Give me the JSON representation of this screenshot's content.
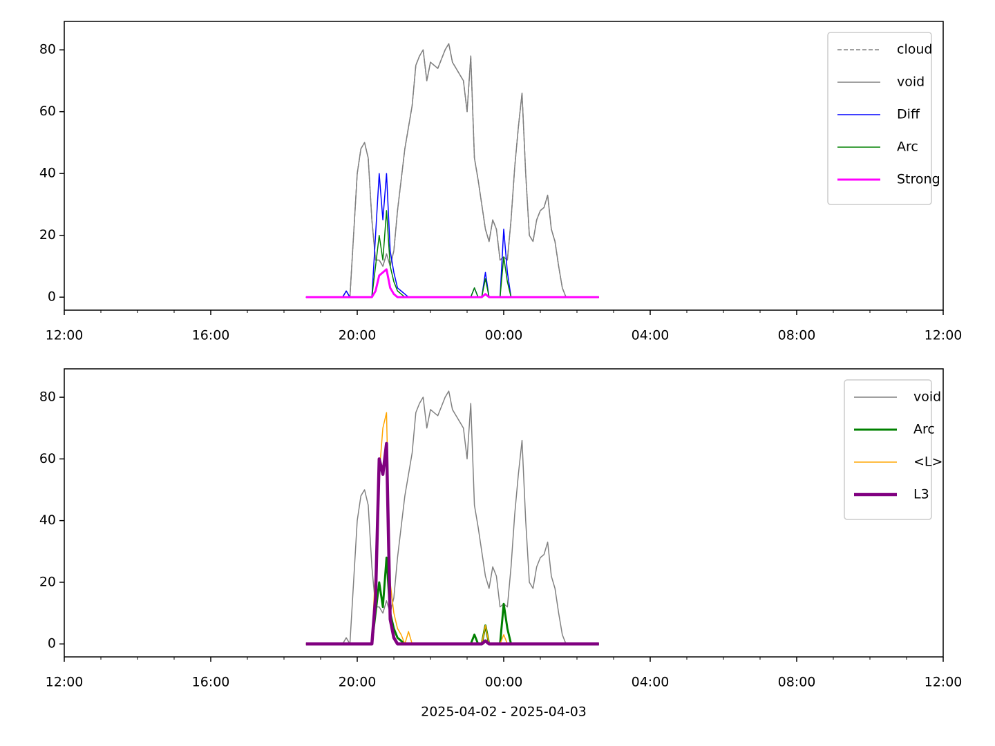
{
  "chart_data": [
    {
      "type": "line",
      "x": [
        6.6,
        6.7,
        6.8,
        6.9,
        7.0,
        7.1,
        7.2,
        7.3,
        7.4,
        7.5,
        7.6,
        7.7,
        7.8,
        7.9,
        8.0,
        8.1,
        8.2,
        8.3,
        8.4,
        8.5,
        8.6,
        8.7,
        8.8,
        8.9,
        9.0,
        9.1,
        9.2,
        9.3,
        9.4,
        9.5,
        9.6,
        9.7,
        9.8,
        9.9,
        10.0,
        10.1,
        10.2,
        10.3,
        10.4,
        10.5,
        10.6,
        10.7,
        10.8,
        10.9,
        11.0,
        11.1,
        11.2,
        11.3,
        11.4,
        11.5,
        11.6,
        11.7,
        11.8,
        11.9,
        12.0,
        12.1,
        12.2,
        12.3,
        12.4,
        12.5,
        12.6,
        12.7,
        12.8,
        12.9,
        13.0,
        13.1,
        13.2,
        13.3,
        13.4,
        13.5,
        13.6,
        13.7,
        13.8,
        13.9,
        14.0,
        14.1,
        14.2,
        14.3,
        14.4,
        14.5,
        14.6
      ],
      "xlim": [
        0,
        24
      ],
      "xticks": [
        {
          "value": 0,
          "label": "12:00"
        },
        {
          "value": 4,
          "label": "16:00"
        },
        {
          "value": 8,
          "label": "20:00"
        },
        {
          "value": 12,
          "label": "00:00"
        },
        {
          "value": 16,
          "label": "04:00"
        },
        {
          "value": 20,
          "label": "08:00"
        },
        {
          "value": 24,
          "label": "12:00"
        }
      ],
      "ylim": [
        -4.2,
        89.2
      ],
      "yticks": [
        0,
        20,
        40,
        60,
        80
      ],
      "legend": "upper right",
      "series": [
        {
          "name": "cloud",
          "color": "#808080",
          "width": 1.5,
          "dash": true,
          "values": [
            0,
            0,
            0,
            0,
            0,
            0,
            0,
            0,
            0,
            0,
            0,
            2,
            0,
            20,
            40,
            48,
            50,
            45,
            25,
            12,
            12,
            10,
            14,
            10,
            15,
            28,
            38,
            48,
            55,
            62,
            75,
            78,
            80,
            70,
            76,
            75,
            74,
            77,
            80,
            82,
            76,
            74,
            72,
            70,
            60,
            78,
            45,
            38,
            30,
            22,
            18,
            25,
            22,
            12,
            13,
            12,
            25,
            42,
            55,
            66,
            40,
            20,
            18,
            25,
            28,
            29,
            33,
            22,
            18,
            10,
            3,
            0,
            0,
            0,
            0,
            0,
            0,
            0,
            0,
            0,
            0
          ]
        },
        {
          "name": "void",
          "color": "#808080",
          "width": 1.5,
          "dash": false,
          "values": [
            0,
            0,
            0,
            0,
            0,
            0,
            0,
            0,
            0,
            0,
            0,
            2,
            0,
            20,
            40,
            48,
            50,
            45,
            25,
            12,
            12,
            10,
            14,
            10,
            15,
            28,
            38,
            48,
            55,
            62,
            75,
            78,
            80,
            70,
            76,
            75,
            74,
            77,
            80,
            82,
            76,
            74,
            72,
            70,
            60,
            78,
            45,
            38,
            30,
            22,
            18,
            25,
            22,
            12,
            13,
            12,
            25,
            42,
            55,
            66,
            40,
            20,
            18,
            25,
            28,
            29,
            33,
            22,
            18,
            10,
            3,
            0,
            0,
            0,
            0,
            0,
            0,
            0,
            0,
            0,
            0
          ]
        },
        {
          "name": "Diff",
          "color": "#0000ff",
          "width": 1.5,
          "dash": false,
          "values": [
            0,
            0,
            0,
            0,
            0,
            0,
            0,
            0,
            0,
            0,
            0,
            2,
            0,
            0,
            0,
            0,
            0,
            0,
            0,
            20,
            40,
            25,
            40,
            15,
            8,
            3,
            2,
            1,
            0,
            0,
            0,
            0,
            0,
            0,
            0,
            0,
            0,
            0,
            0,
            0,
            0,
            0,
            0,
            0,
            0,
            0,
            3,
            0,
            0,
            8,
            0,
            0,
            0,
            0,
            22,
            8,
            0,
            0,
            0,
            0,
            0,
            0,
            0,
            0,
            0,
            0,
            0,
            0,
            0,
            0,
            0,
            0,
            0,
            0,
            0,
            0,
            0,
            0,
            0,
            0,
            0
          ]
        },
        {
          "name": "Arc",
          "color": "#008000",
          "width": 1.5,
          "dash": false,
          "values": [
            0,
            0,
            0,
            0,
            0,
            0,
            0,
            0,
            0,
            0,
            0,
            0,
            0,
            0,
            0,
            0,
            0,
            0,
            0,
            10,
            20,
            12,
            28,
            10,
            5,
            2,
            1,
            0,
            0,
            0,
            0,
            0,
            0,
            0,
            0,
            0,
            0,
            0,
            0,
            0,
            0,
            0,
            0,
            0,
            0,
            0,
            3,
            0,
            0,
            6,
            0,
            0,
            0,
            0,
            13,
            5,
            0,
            0,
            0,
            0,
            0,
            0,
            0,
            0,
            0,
            0,
            0,
            0,
            0,
            0,
            0,
            0,
            0,
            0,
            0,
            0,
            0,
            0,
            0,
            0,
            0
          ]
        },
        {
          "name": "Strong",
          "color": "#ff00ff",
          "width": 3,
          "dash": false,
          "values": [
            0,
            0,
            0,
            0,
            0,
            0,
            0,
            0,
            0,
            0,
            0,
            0,
            0,
            0,
            0,
            0,
            0,
            0,
            0,
            2,
            7,
            8,
            9,
            3,
            1,
            0,
            0,
            0,
            0,
            0,
            0,
            0,
            0,
            0,
            0,
            0,
            0,
            0,
            0,
            0,
            0,
            0,
            0,
            0,
            0,
            0,
            0,
            0,
            0,
            1,
            0,
            0,
            0,
            0,
            0,
            0,
            0,
            0,
            0,
            0,
            0,
            0,
            0,
            0,
            0,
            0,
            0,
            0,
            0,
            0,
            0,
            0,
            0,
            0,
            0,
            0,
            0,
            0,
            0,
            0,
            0
          ]
        }
      ]
    },
    {
      "type": "line",
      "x": [
        6.6,
        6.7,
        6.8,
        6.9,
        7.0,
        7.1,
        7.2,
        7.3,
        7.4,
        7.5,
        7.6,
        7.7,
        7.8,
        7.9,
        8.0,
        8.1,
        8.2,
        8.3,
        8.4,
        8.5,
        8.6,
        8.7,
        8.8,
        8.9,
        9.0,
        9.1,
        9.2,
        9.3,
        9.4,
        9.5,
        9.6,
        9.7,
        9.8,
        9.9,
        10.0,
        10.1,
        10.2,
        10.3,
        10.4,
        10.5,
        10.6,
        10.7,
        10.8,
        10.9,
        11.0,
        11.1,
        11.2,
        11.3,
        11.4,
        11.5,
        11.6,
        11.7,
        11.8,
        11.9,
        12.0,
        12.1,
        12.2,
        12.3,
        12.4,
        12.5,
        12.6,
        12.7,
        12.8,
        12.9,
        13.0,
        13.1,
        13.2,
        13.3,
        13.4,
        13.5,
        13.6,
        13.7,
        13.8,
        13.9,
        14.0,
        14.1,
        14.2,
        14.3,
        14.4,
        14.5,
        14.6
      ],
      "xlim": [
        0,
        24
      ],
      "xticks": [
        {
          "value": 0,
          "label": "12:00"
        },
        {
          "value": 4,
          "label": "16:00"
        },
        {
          "value": 8,
          "label": "20:00"
        },
        {
          "value": 12,
          "label": "00:00"
        },
        {
          "value": 16,
          "label": "04:00"
        },
        {
          "value": 20,
          "label": "08:00"
        },
        {
          "value": 24,
          "label": "12:00"
        }
      ],
      "ylim": [
        -4.2,
        89.2
      ],
      "yticks": [
        0,
        20,
        40,
        60,
        80
      ],
      "x_label": "2025-04-02 - 2025-04-03",
      "legend": "upper right",
      "series": [
        {
          "name": "void",
          "color": "#808080",
          "width": 1.5,
          "dash": false,
          "values": [
            0,
            0,
            0,
            0,
            0,
            0,
            0,
            0,
            0,
            0,
            0,
            2,
            0,
            20,
            40,
            48,
            50,
            45,
            25,
            12,
            12,
            10,
            14,
            10,
            15,
            28,
            38,
            48,
            55,
            62,
            75,
            78,
            80,
            70,
            76,
            75,
            74,
            77,
            80,
            82,
            76,
            74,
            72,
            70,
            60,
            78,
            45,
            38,
            30,
            22,
            18,
            25,
            22,
            12,
            13,
            12,
            25,
            42,
            55,
            66,
            40,
            20,
            18,
            25,
            28,
            29,
            33,
            22,
            18,
            10,
            3,
            0,
            0,
            0,
            0,
            0,
            0,
            0,
            0,
            0,
            0
          ]
        },
        {
          "name": "Arc",
          "color": "#008000",
          "width": 3,
          "dash": false,
          "values": [
            0,
            0,
            0,
            0,
            0,
            0,
            0,
            0,
            0,
            0,
            0,
            0,
            0,
            0,
            0,
            0,
            0,
            0,
            0,
            10,
            20,
            12,
            28,
            10,
            5,
            2,
            1,
            0,
            0,
            0,
            0,
            0,
            0,
            0,
            0,
            0,
            0,
            0,
            0,
            0,
            0,
            0,
            0,
            0,
            0,
            0,
            3,
            0,
            0,
            6,
            0,
            0,
            0,
            0,
            13,
            5,
            0,
            0,
            0,
            0,
            0,
            0,
            0,
            0,
            0,
            0,
            0,
            0,
            0,
            0,
            0,
            0,
            0,
            0,
            0,
            0,
            0,
            0,
            0,
            0,
            0
          ]
        },
        {
          "name": "<L>",
          "color": "#ffa500",
          "width": 1.5,
          "dash": false,
          "values": [
            0,
            0,
            0,
            0,
            0,
            0,
            0,
            0,
            0,
            0,
            0,
            0,
            0,
            0,
            0,
            0,
            0,
            0,
            0,
            25,
            55,
            70,
            75,
            20,
            10,
            5,
            3,
            0,
            4,
            0,
            0,
            0,
            0,
            0,
            0,
            0,
            0,
            0,
            0,
            0,
            0,
            0,
            0,
            0,
            0,
            0,
            0,
            0,
            0,
            6,
            0,
            0,
            0,
            0,
            3,
            0,
            0,
            0,
            0,
            0,
            0,
            0,
            0,
            0,
            0,
            0,
            0,
            0,
            0,
            0,
            0,
            0,
            0,
            0,
            0,
            0,
            0,
            0,
            0,
            0,
            0
          ]
        },
        {
          "name": "L3",
          "color": "#800080",
          "width": 4.5,
          "dash": false,
          "values": [
            0,
            0,
            0,
            0,
            0,
            0,
            0,
            0,
            0,
            0,
            0,
            0,
            0,
            0,
            0,
            0,
            0,
            0,
            0,
            15,
            60,
            55,
            65,
            8,
            2,
            0,
            0,
            0,
            0,
            0,
            0,
            0,
            0,
            0,
            0,
            0,
            0,
            0,
            0,
            0,
            0,
            0,
            0,
            0,
            0,
            0,
            0,
            0,
            0,
            1,
            0,
            0,
            0,
            0,
            0,
            0,
            0,
            0,
            0,
            0,
            0,
            0,
            0,
            0,
            0,
            0,
            0,
            0,
            0,
            0,
            0,
            0,
            0,
            0,
            0,
            0,
            0,
            0,
            0,
            0,
            0
          ]
        }
      ]
    }
  ]
}
